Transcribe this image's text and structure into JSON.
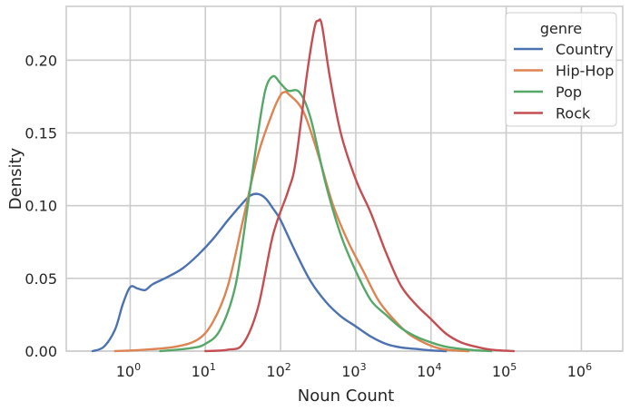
{
  "chart_data": {
    "type": "line",
    "title": "",
    "xlabel": "Noun Count",
    "ylabel": "Density",
    "x_scale": "log10",
    "xlim_log10": [
      -0.85,
      6.55
    ],
    "ylim": [
      0,
      0.237
    ],
    "x_ticks": [
      {
        "base": "10",
        "exp": "0",
        "pos": 0
      },
      {
        "base": "10",
        "exp": "1",
        "pos": 1
      },
      {
        "base": "10",
        "exp": "2",
        "pos": 2
      },
      {
        "base": "10",
        "exp": "3",
        "pos": 3
      },
      {
        "base": "10",
        "exp": "4",
        "pos": 4
      },
      {
        "base": "10",
        "exp": "5",
        "pos": 5
      },
      {
        "base": "10",
        "exp": "6",
        "pos": 6
      }
    ],
    "y_ticks": [
      {
        "label": "0.00",
        "value": 0.0
      },
      {
        "label": "0.05",
        "value": 0.05
      },
      {
        "label": "0.10",
        "value": 0.1
      },
      {
        "label": "0.15",
        "value": 0.15
      },
      {
        "label": "0.20",
        "value": 0.2
      }
    ],
    "grid": true,
    "legend": {
      "title": "genre",
      "placement": "top-right"
    },
    "series": [
      {
        "name": "Country",
        "color": "#4c72b0",
        "points": [
          [
            -0.5,
            0.0
          ],
          [
            -0.35,
            0.003
          ],
          [
            -0.2,
            0.015
          ],
          [
            -0.1,
            0.032
          ],
          [
            0.0,
            0.044
          ],
          [
            0.1,
            0.043
          ],
          [
            0.2,
            0.042
          ],
          [
            0.3,
            0.046
          ],
          [
            0.5,
            0.051
          ],
          [
            0.7,
            0.057
          ],
          [
            0.9,
            0.066
          ],
          [
            1.1,
            0.077
          ],
          [
            1.3,
            0.09
          ],
          [
            1.5,
            0.102
          ],
          [
            1.6,
            0.107
          ],
          [
            1.7,
            0.108
          ],
          [
            1.8,
            0.105
          ],
          [
            1.9,
            0.098
          ],
          [
            2.0,
            0.09
          ],
          [
            2.2,
            0.068
          ],
          [
            2.4,
            0.048
          ],
          [
            2.6,
            0.034
          ],
          [
            2.8,
            0.024
          ],
          [
            3.0,
            0.017
          ],
          [
            3.2,
            0.01
          ],
          [
            3.4,
            0.005
          ],
          [
            3.6,
            0.0025
          ],
          [
            3.8,
            0.0015
          ],
          [
            4.0,
            0.0005
          ],
          [
            4.2,
            0.0
          ]
        ]
      },
      {
        "name": "Hip-Hop",
        "color": "#dd8452",
        "points": [
          [
            -0.2,
            0.0
          ],
          [
            0.2,
            0.001
          ],
          [
            0.6,
            0.003
          ],
          [
            0.9,
            0.008
          ],
          [
            1.1,
            0.02
          ],
          [
            1.3,
            0.045
          ],
          [
            1.5,
            0.09
          ],
          [
            1.7,
            0.135
          ],
          [
            1.9,
            0.165
          ],
          [
            2.0,
            0.176
          ],
          [
            2.05,
            0.178
          ],
          [
            2.1,
            0.177
          ],
          [
            2.3,
            0.165
          ],
          [
            2.5,
            0.135
          ],
          [
            2.7,
            0.1
          ],
          [
            2.9,
            0.075
          ],
          [
            3.1,
            0.055
          ],
          [
            3.3,
            0.035
          ],
          [
            3.5,
            0.022
          ],
          [
            3.7,
            0.012
          ],
          [
            3.9,
            0.006
          ],
          [
            4.1,
            0.002
          ],
          [
            4.3,
            0.0005
          ],
          [
            4.5,
            0.0
          ]
        ]
      },
      {
        "name": "Pop",
        "color": "#55a868",
        "points": [
          [
            0.4,
            0.0
          ],
          [
            0.8,
            0.002
          ],
          [
            1.0,
            0.005
          ],
          [
            1.2,
            0.015
          ],
          [
            1.4,
            0.045
          ],
          [
            1.55,
            0.095
          ],
          [
            1.7,
            0.15
          ],
          [
            1.8,
            0.18
          ],
          [
            1.9,
            0.189
          ],
          [
            2.0,
            0.184
          ],
          [
            2.1,
            0.179
          ],
          [
            2.25,
            0.178
          ],
          [
            2.4,
            0.16
          ],
          [
            2.6,
            0.115
          ],
          [
            2.8,
            0.08
          ],
          [
            3.0,
            0.055
          ],
          [
            3.2,
            0.035
          ],
          [
            3.4,
            0.025
          ],
          [
            3.6,
            0.016
          ],
          [
            3.8,
            0.01
          ],
          [
            4.0,
            0.006
          ],
          [
            4.2,
            0.003
          ],
          [
            4.5,
            0.001
          ],
          [
            4.8,
            0.0
          ]
        ]
      },
      {
        "name": "Rock",
        "color": "#c44e52",
        "points": [
          [
            1.0,
            0.0
          ],
          [
            1.3,
            0.001
          ],
          [
            1.5,
            0.005
          ],
          [
            1.7,
            0.03
          ],
          [
            1.9,
            0.08
          ],
          [
            2.1,
            0.11
          ],
          [
            2.2,
            0.13
          ],
          [
            2.35,
            0.19
          ],
          [
            2.45,
            0.222
          ],
          [
            2.5,
            0.227
          ],
          [
            2.55,
            0.224
          ],
          [
            2.65,
            0.19
          ],
          [
            2.8,
            0.15
          ],
          [
            3.0,
            0.118
          ],
          [
            3.2,
            0.095
          ],
          [
            3.4,
            0.068
          ],
          [
            3.6,
            0.045
          ],
          [
            3.8,
            0.032
          ],
          [
            4.0,
            0.022
          ],
          [
            4.2,
            0.012
          ],
          [
            4.4,
            0.006
          ],
          [
            4.6,
            0.003
          ],
          [
            4.8,
            0.001
          ],
          [
            5.1,
            0.0
          ]
        ]
      }
    ]
  }
}
